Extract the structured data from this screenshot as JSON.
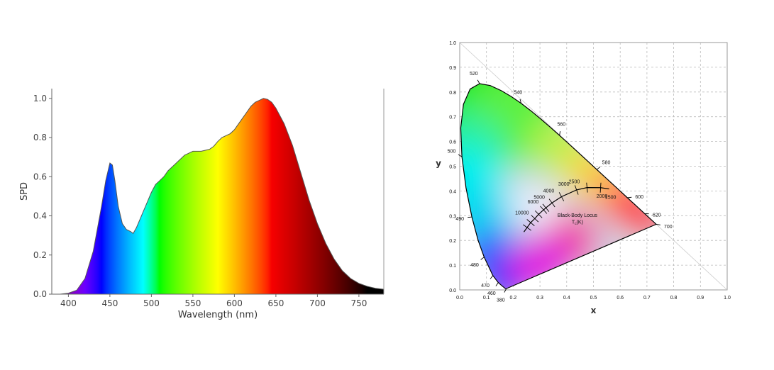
{
  "chart_data": [
    {
      "type": "area",
      "xlabel": "Wavelength (nm)",
      "ylabel": "SPD",
      "xlim": [
        380,
        780
      ],
      "ylim": [
        0,
        1.05
      ],
      "xticks": [
        "400",
        "450",
        "500",
        "550",
        "600",
        "650",
        "700",
        "750"
      ],
      "yticks": [
        "0.0",
        "0.2",
        "0.4",
        "0.6",
        "0.8",
        "1.0"
      ],
      "fill": "visible spectrum colors",
      "series": [
        {
          "x": [
            380,
            390,
            400,
            410,
            420,
            430,
            440,
            445,
            450,
            453,
            456,
            460,
            465,
            470,
            475,
            478,
            482,
            488,
            495,
            500,
            505,
            510,
            515,
            520,
            530,
            540,
            545,
            550,
            555,
            560,
            565,
            570,
            575,
            580,
            585,
            590,
            595,
            600,
            605,
            610,
            615,
            620,
            625,
            630,
            635,
            640,
            645,
            650,
            660,
            670,
            680,
            690,
            700,
            710,
            720,
            730,
            740,
            750,
            760,
            770,
            780
          ],
          "y": [
            0.0,
            0.0,
            0.005,
            0.02,
            0.08,
            0.22,
            0.45,
            0.58,
            0.67,
            0.66,
            0.58,
            0.45,
            0.36,
            0.33,
            0.32,
            0.31,
            0.34,
            0.4,
            0.47,
            0.52,
            0.56,
            0.58,
            0.6,
            0.63,
            0.67,
            0.71,
            0.72,
            0.73,
            0.73,
            0.73,
            0.735,
            0.74,
            0.755,
            0.78,
            0.8,
            0.81,
            0.82,
            0.84,
            0.87,
            0.9,
            0.93,
            0.96,
            0.98,
            0.99,
            1.0,
            0.995,
            0.98,
            0.95,
            0.87,
            0.76,
            0.62,
            0.48,
            0.36,
            0.26,
            0.18,
            0.12,
            0.08,
            0.055,
            0.04,
            0.03,
            0.025
          ]
        }
      ]
    },
    {
      "type": "diagram",
      "xlabel": "x",
      "ylabel": "y",
      "xlim": [
        0,
        1
      ],
      "ylim": [
        0,
        1
      ],
      "xticks": [
        "0.0",
        "0.1",
        "0.2",
        "0.3",
        "0.4",
        "0.5",
        "0.6",
        "0.7",
        "0.8",
        "0.9",
        "1.0"
      ],
      "yticks": [
        "0.0",
        "0.1",
        "0.2",
        "0.3",
        "0.4",
        "0.5",
        "0.6",
        "0.7",
        "0.8",
        "0.9",
        "1.0"
      ],
      "grid": true,
      "locus": {
        "x": [
          0.1741,
          0.1738,
          0.1733,
          0.1726,
          0.1714,
          0.1689,
          0.1644,
          0.1566,
          0.144,
          0.1241,
          0.0913,
          0.0687,
          0.0454,
          0.0235,
          0.0082,
          0.0039,
          0.0139,
          0.0389,
          0.0743,
          0.1142,
          0.1547,
          0.1929,
          0.2296,
          0.2658,
          0.3016,
          0.3373,
          0.3731,
          0.4087,
          0.4441,
          0.4788,
          0.5125,
          0.5448,
          0.5752,
          0.6029,
          0.627,
          0.6482,
          0.6658,
          0.6801,
          0.6915,
          0.7006,
          0.7079,
          0.714,
          0.719,
          0.723,
          0.726,
          0.7283,
          0.73,
          0.7311,
          0.732,
          0.7327,
          0.7334,
          0.734,
          0.7344,
          0.7346,
          0.7347,
          0.7347
        ],
        "y": [
          0.005,
          0.0049,
          0.0048,
          0.0048,
          0.0051,
          0.0069,
          0.0109,
          0.0177,
          0.0297,
          0.0578,
          0.1327,
          0.2007,
          0.295,
          0.4127,
          0.5384,
          0.6548,
          0.7502,
          0.812,
          0.8338,
          0.8262,
          0.8059,
          0.7816,
          0.7543,
          0.7243,
          0.6923,
          0.6589,
          0.6245,
          0.5896,
          0.5547,
          0.5202,
          0.4866,
          0.4544,
          0.4242,
          0.3965,
          0.3725,
          0.3514,
          0.334,
          0.3197,
          0.3083,
          0.2993,
          0.292,
          0.2859,
          0.2809,
          0.277,
          0.274,
          0.2717,
          0.27,
          0.2689,
          0.268,
          0.2673,
          0.2666,
          0.266,
          0.2656,
          0.2654,
          0.2653,
          0.2653
        ],
        "wavelength_labels": [
          {
            "nm": "380",
            "x": 0.1741,
            "y": 0.005
          },
          {
            "nm": "460",
            "x": 0.144,
            "y": 0.0297
          },
          {
            "nm": "470",
            "x": 0.1241,
            "y": 0.0578
          },
          {
            "nm": "480",
            "x": 0.0913,
            "y": 0.1327
          },
          {
            "nm": "490",
            "x": 0.0454,
            "y": 0.295
          },
          {
            "nm": "500",
            "x": 0.0082,
            "y": 0.5384
          },
          {
            "nm": "520",
            "x": 0.0743,
            "y": 0.8338
          },
          {
            "nm": "540",
            "x": 0.2296,
            "y": 0.7543
          },
          {
            "nm": "560",
            "x": 0.3731,
            "y": 0.6245
          },
          {
            "nm": "580",
            "x": 0.5125,
            "y": 0.4866
          },
          {
            "nm": "600",
            "x": 0.627,
            "y": 0.3725
          },
          {
            "nm": "620",
            "x": 0.6915,
            "y": 0.3083
          },
          {
            "nm": "700",
            "x": 0.7347,
            "y": 0.2653
          }
        ]
      },
      "planckian_locus": {
        "title": "Black-Body Locus",
        "subtitle": "T",
        "subtitle_sub": "c",
        "subtitle_suffix": "(K)",
        "x": [
          0.2399,
          0.252,
          0.2653,
          0.2807,
          0.295,
          0.3135,
          0.3221,
          0.3451,
          0.3805,
          0.4369,
          0.476,
          0.5267,
          0.5586
        ],
        "y": [
          0.2342,
          0.2522,
          0.272,
          0.2883,
          0.3057,
          0.3236,
          0.3318,
          0.3516,
          0.3768,
          0.4041,
          0.4137,
          0.4133,
          0.4081
        ],
        "temperature_labels": [
          {
            "t": "10000",
            "x": 0.2807,
            "y": 0.2883
          },
          {
            "t": "6000",
            "x": 0.3221,
            "y": 0.3318
          },
          {
            "t": "5000",
            "x": 0.3451,
            "y": 0.3516
          },
          {
            "t": "4000",
            "x": 0.3805,
            "y": 0.3768
          },
          {
            "t": "3000",
            "x": 0.4369,
            "y": 0.4041
          },
          {
            "t": "2500",
            "x": 0.476,
            "y": 0.4137
          },
          {
            "t": "2000",
            "x": 0.5267,
            "y": 0.4133
          },
          {
            "t": "1500",
            "x": 0.5586,
            "y": 0.4081
          }
        ]
      }
    }
  ]
}
